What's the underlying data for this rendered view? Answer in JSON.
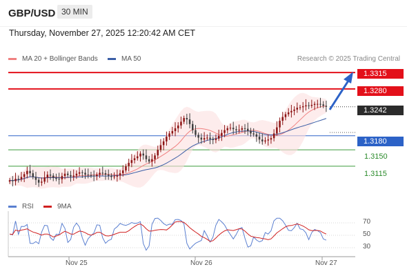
{
  "header": {
    "pair": "GBP/USD",
    "timeframe": "30 MIN"
  },
  "datetime": "Thursday, November 27, 2025 12:20:42 AM CET",
  "legend": {
    "ma_bb": "MA 20 + Bollinger Bands",
    "ma50": "MA 50",
    "rsi": "RSI",
    "ma9": "9MA"
  },
  "credit": "Research © 2025 Trading Central",
  "colors": {
    "resistance": "#e3101a",
    "support_blue": "#2c62c7",
    "support_green": "#3a9a3a",
    "ma20": "#f08080",
    "ma50": "#3b5ea6",
    "rsi": "#5a7fd0",
    "ma9": "#d02020",
    "up": "#8c1414",
    "down": "#3e3e3e"
  },
  "chart_data": [
    {
      "type": "candlestick",
      "pair": "GBP/USD",
      "timeframe": "30 MIN",
      "x_labels": [
        "Nov 25",
        "Nov 26",
        "Nov 27"
      ],
      "y_range": [
        1.305,
        1.333
      ],
      "levels": [
        {
          "value": "1.3315",
          "kind": "resistance"
        },
        {
          "value": "1.3280",
          "kind": "resistance"
        },
        {
          "value": "1.3242",
          "kind": "last"
        },
        {
          "value": "1.3180",
          "kind": "support"
        },
        {
          "value": "1.3150",
          "kind": "support"
        },
        {
          "value": "1.3115",
          "kind": "support"
        }
      ],
      "series": [
        {
          "name": "MA 20 + Bollinger Bands"
        },
        {
          "name": "MA 50"
        }
      ],
      "close": [
        1.3085,
        1.3083,
        1.3088,
        1.3087,
        1.3092,
        1.3098,
        1.3105,
        1.31,
        1.3092,
        1.3086,
        1.308,
        1.3082,
        1.3091,
        1.3097,
        1.3095,
        1.309,
        1.3088,
        1.3087,
        1.3094,
        1.3099,
        1.3096,
        1.3093,
        1.3095,
        1.3099,
        1.3102,
        1.3101,
        1.3097,
        1.3096,
        1.3095,
        1.3094,
        1.3097,
        1.3101,
        1.31,
        1.3097,
        1.3095,
        1.3092,
        1.3093,
        1.3095,
        1.31,
        1.3106,
        1.3115,
        1.3122,
        1.3128,
        1.3132,
        1.3136,
        1.3142,
        1.3138,
        1.313,
        1.3125,
        1.313,
        1.3138,
        1.315,
        1.316,
        1.3168,
        1.3178,
        1.3185,
        1.319,
        1.3196,
        1.3202,
        1.321,
        1.3218,
        1.3215,
        1.3205,
        1.3192,
        1.3182,
        1.3176,
        1.3172,
        1.3175,
        1.3176,
        1.3173,
        1.3171,
        1.3174,
        1.318,
        1.3186,
        1.3192,
        1.3196,
        1.3197,
        1.3194,
        1.3192,
        1.3193,
        1.3196,
        1.3195,
        1.319,
        1.3185,
        1.3183,
        1.3178,
        1.3172,
        1.3168,
        1.317,
        1.3172,
        1.3175,
        1.3185,
        1.3198,
        1.3212,
        1.322,
        1.3226,
        1.323,
        1.3233,
        1.3236,
        1.324,
        1.3241,
        1.3243,
        1.3245,
        1.3244,
        1.3246,
        1.3248,
        1.3248,
        1.3247,
        1.3244,
        1.3242
      ],
      "rsi": {
        "ticks": [
          "70",
          "50",
          "30"
        ]
      }
    }
  ]
}
